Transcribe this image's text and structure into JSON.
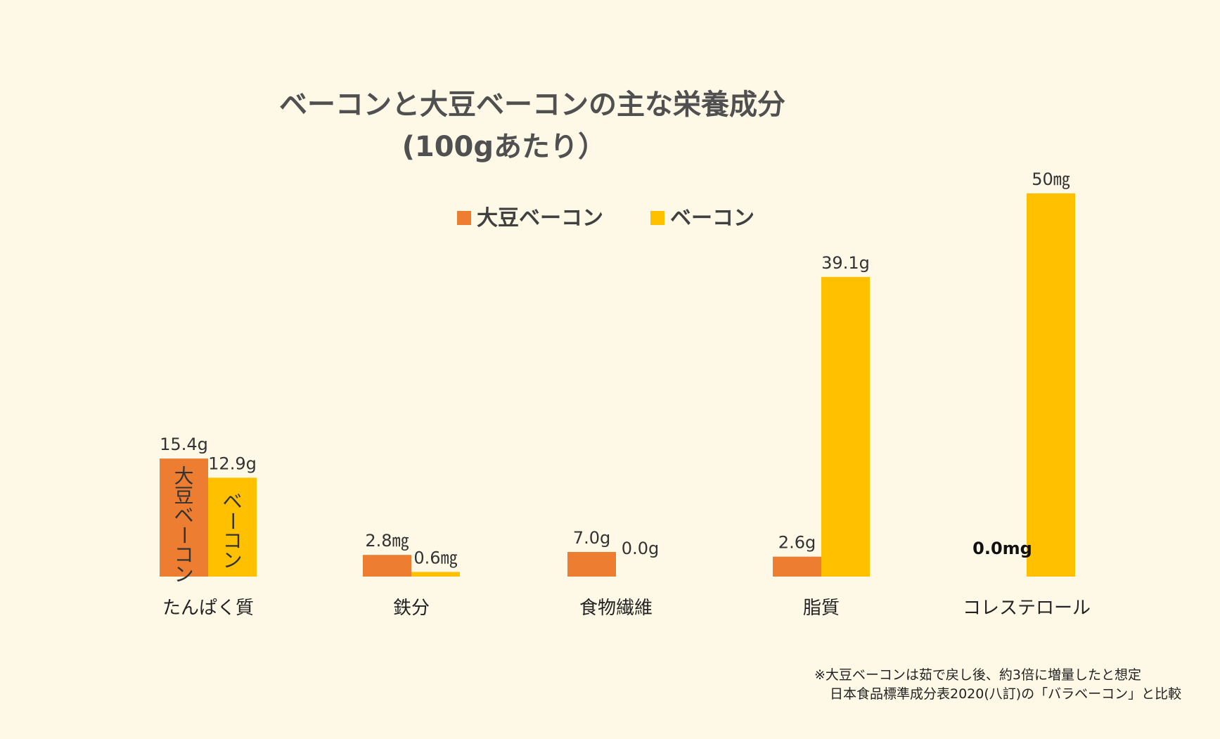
{
  "chart_data": {
    "type": "bar",
    "title": [
      "ベーコンと大豆ベーコンの主な栄養成分",
      "(100gあたり）"
    ],
    "categories": [
      "たんぱく質",
      "鉄分",
      "食物繊維",
      "脂質",
      "コレステロール"
    ],
    "series": [
      {
        "name": "大豆ベーコン",
        "color": "#ed7d31",
        "values": [
          15.4,
          2.8,
          7.0,
          2.6,
          0.0
        ],
        "labels": [
          "15.4g",
          "2.8㎎",
          "7.0g",
          "2.6g",
          "0.0mg"
        ],
        "inbar_label": "大豆ベーコン"
      },
      {
        "name": "ベーコン",
        "color": "#ffc000",
        "values": [
          12.9,
          0.6,
          0.0,
          39.1,
          50
        ],
        "labels": [
          "12.9g",
          "0.6㎎",
          "0.0g",
          "39.1g",
          "50㎎"
        ],
        "inbar_label": "ベーコン"
      }
    ],
    "legend": "top-center",
    "grid": false,
    "xlabel": "",
    "ylabel": ""
  },
  "footnote": [
    "※大豆ベーコンは茹で戻し後、約3倍に増量したと想定",
    "日本食品標準成分表2020(八訂)の「バラベーコン」と比較"
  ]
}
